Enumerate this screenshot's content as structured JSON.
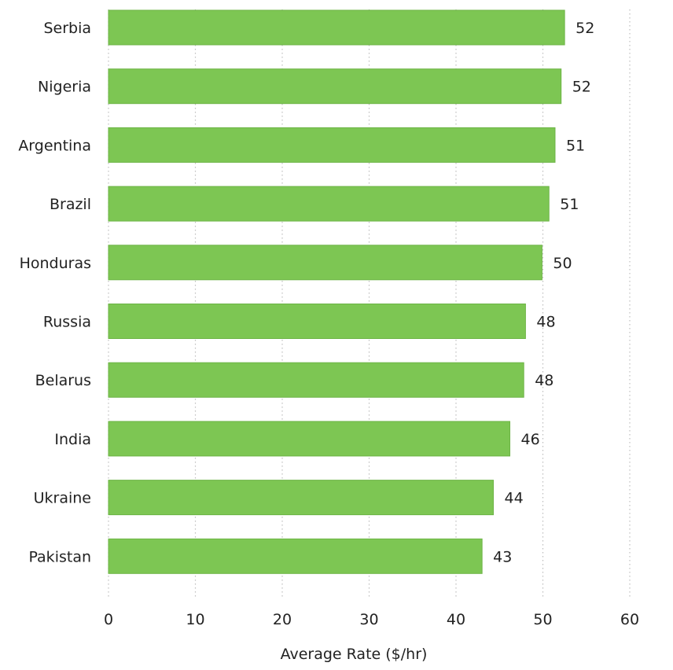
{
  "chart_data": {
    "type": "bar",
    "orientation": "horizontal",
    "categories": [
      "Serbia",
      "Nigeria",
      "Argentina",
      "Brazil",
      "Honduras",
      "Russia",
      "Belarus",
      "India",
      "Ukraine",
      "Pakistan"
    ],
    "values": [
      52.5,
      52.1,
      51.4,
      50.7,
      49.9,
      48.0,
      47.8,
      46.2,
      44.3,
      43.0
    ],
    "value_labels": [
      "52",
      "52",
      "51",
      "51",
      "50",
      "48",
      "48",
      "46",
      "44",
      "43"
    ],
    "xlabel": "Average Rate ($/hr)",
    "ylabel": "",
    "title": "",
    "xlim": [
      0,
      60
    ],
    "xticks": [
      0,
      10,
      20,
      30,
      40,
      50,
      60
    ],
    "grid": "vertical dotted",
    "bar_color": "#7dc653",
    "bar_border_color": "#6db446"
  }
}
